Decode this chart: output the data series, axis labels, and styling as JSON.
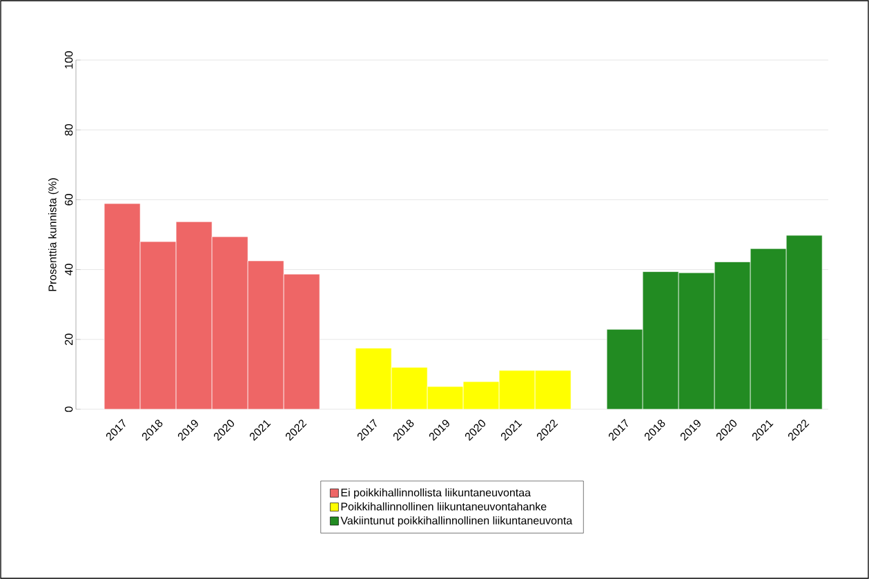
{
  "chart_data": {
    "type": "bar",
    "ylabel": "Prosenttia kunnista (%)",
    "categories": [
      "2017",
      "2018",
      "2019",
      "2020",
      "2021",
      "2022",
      null,
      "2017",
      "2018",
      "2019",
      "2020",
      "2021",
      "2022",
      null,
      "2017",
      "2018",
      "2019",
      "2020",
      "2021",
      "2022"
    ],
    "series": [
      {
        "name": "Ei poikkihallinnollista liikuntaneuvontaa",
        "color": "#ee6666",
        "values": [
          58.9,
          48.0,
          53.7,
          49.4,
          42.5,
          38.7,
          null,
          null,
          null,
          null,
          null,
          null,
          null,
          null,
          null,
          null,
          null,
          null,
          null,
          null
        ]
      },
      {
        "name": "Poikkihallinnollinen liikuntaneuvontahanke",
        "color": "#ffff00",
        "values": [
          null,
          null,
          null,
          null,
          null,
          null,
          null,
          17.5,
          12.0,
          6.5,
          7.9,
          11.1,
          11.1,
          null,
          null,
          null,
          null,
          null,
          null,
          null
        ]
      },
      {
        "name": "Vakiintunut poikkihallinnollinen liikuntaneuvonta",
        "color": "#228b22",
        "values": [
          null,
          null,
          null,
          null,
          null,
          null,
          null,
          null,
          null,
          null,
          null,
          null,
          null,
          null,
          22.9,
          39.4,
          39.1,
          42.2,
          46.0,
          49.8
        ]
      }
    ],
    "ylim": [
      0,
      100
    ],
    "yticks": [
      0,
      20,
      40,
      60,
      80,
      100
    ],
    "grid": "y",
    "legend": "bottom"
  }
}
